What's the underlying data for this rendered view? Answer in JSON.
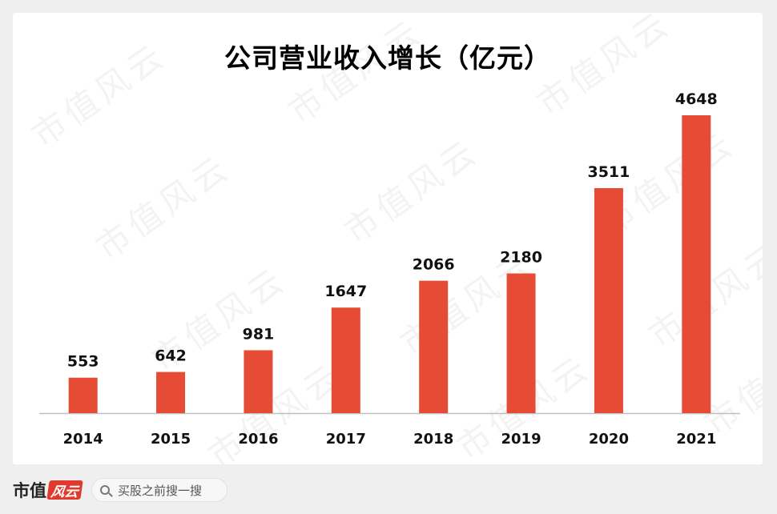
{
  "chart_data": {
    "type": "bar",
    "title": "公司营业收入增长（亿元）",
    "categories": [
      "2014",
      "2015",
      "2016",
      "2017",
      "2018",
      "2019",
      "2020",
      "2021"
    ],
    "values": [
      553,
      642,
      981,
      1647,
      2066,
      2180,
      3511,
      4648
    ],
    "ylim": [
      0,
      4648
    ],
    "grid": false,
    "bar_color": "#e64b35",
    "xlabel": "",
    "ylabel": ""
  },
  "watermark": "市值风云",
  "footer": {
    "brand_text": "市值",
    "brand_stamp": "风云",
    "search_placeholder": "买股之前搜一搜"
  }
}
